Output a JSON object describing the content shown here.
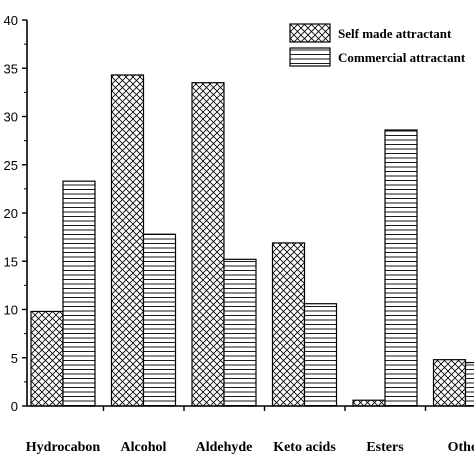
{
  "chart_data": {
    "type": "bar",
    "title": "",
    "xlabel": "",
    "ylabel": "",
    "ylim": [
      0,
      40
    ],
    "yticks": [
      0,
      5,
      10,
      15,
      20,
      25,
      30,
      35,
      40
    ],
    "categories": [
      "Hydrocabon",
      "Alcohol",
      "Aldehyde",
      "Keto acids",
      "Esters",
      "Other"
    ],
    "series": [
      {
        "name": "Self made attractant",
        "pattern": "crosshatch",
        "values": [
          9.8,
          34.3,
          33.5,
          16.9,
          0.6,
          4.8
        ]
      },
      {
        "name": "Commercial attractant",
        "pattern": "horizontal-lines",
        "values": [
          23.3,
          17.8,
          15.2,
          10.6,
          28.6,
          4.5
        ]
      }
    ],
    "legend": {
      "position": "top-right"
    },
    "grid": false,
    "colors": {
      "axis": "#000000",
      "bar_fill": "#ffffff",
      "pattern": "#000000"
    }
  }
}
